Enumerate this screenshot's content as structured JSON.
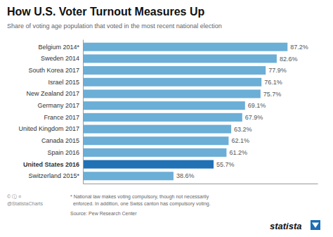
{
  "chart_data": {
    "type": "bar",
    "orientation": "horizontal",
    "title": "How U.S. Voter Turnout Measures Up",
    "subtitle": "Share of voting age population that voted in the most recent national election",
    "categories": [
      "Belgium 2014*",
      "Sweden 2014",
      "South Korea 2017",
      "Israel 2015",
      "New Zealand 2017",
      "Germany 2017",
      "France 2017",
      "United Kingdom 2017",
      "Canada 2015",
      "Spain 2016",
      "United States 2016",
      "Switzerland 2015*"
    ],
    "values": [
      87.2,
      82.6,
      77.9,
      76.1,
      75.7,
      69.1,
      67.9,
      63.2,
      62.1,
      61.2,
      55.7,
      38.6
    ],
    "value_labels": [
      "87.2%",
      "82.6%",
      "77.9%",
      "76.1%",
      "75.7%",
      "69.1%",
      "67.9%",
      "63.2%",
      "62.1%",
      "61.2%",
      "55.7%",
      "38.6%"
    ],
    "colors": [
      "#6baed6",
      "#6baed6",
      "#6baed6",
      "#6baed6",
      "#6baed6",
      "#6baed6",
      "#6baed6",
      "#6baed6",
      "#6baed6",
      "#6baed6",
      "#2171b5",
      "#6baed6"
    ],
    "xlim": [
      0,
      100
    ],
    "data_labels": true,
    "tick_labels": "y",
    "grid": false,
    "annotations": [
      "* National law makes voting compulsory, though not necessarily",
      "  enforced. In addition, one Swiss canton has compulsory voting.",
      "Source: Pew Research Center",
      "© ⓘ ≡",
      "@StatistaCharts",
      "statista"
    ]
  }
}
